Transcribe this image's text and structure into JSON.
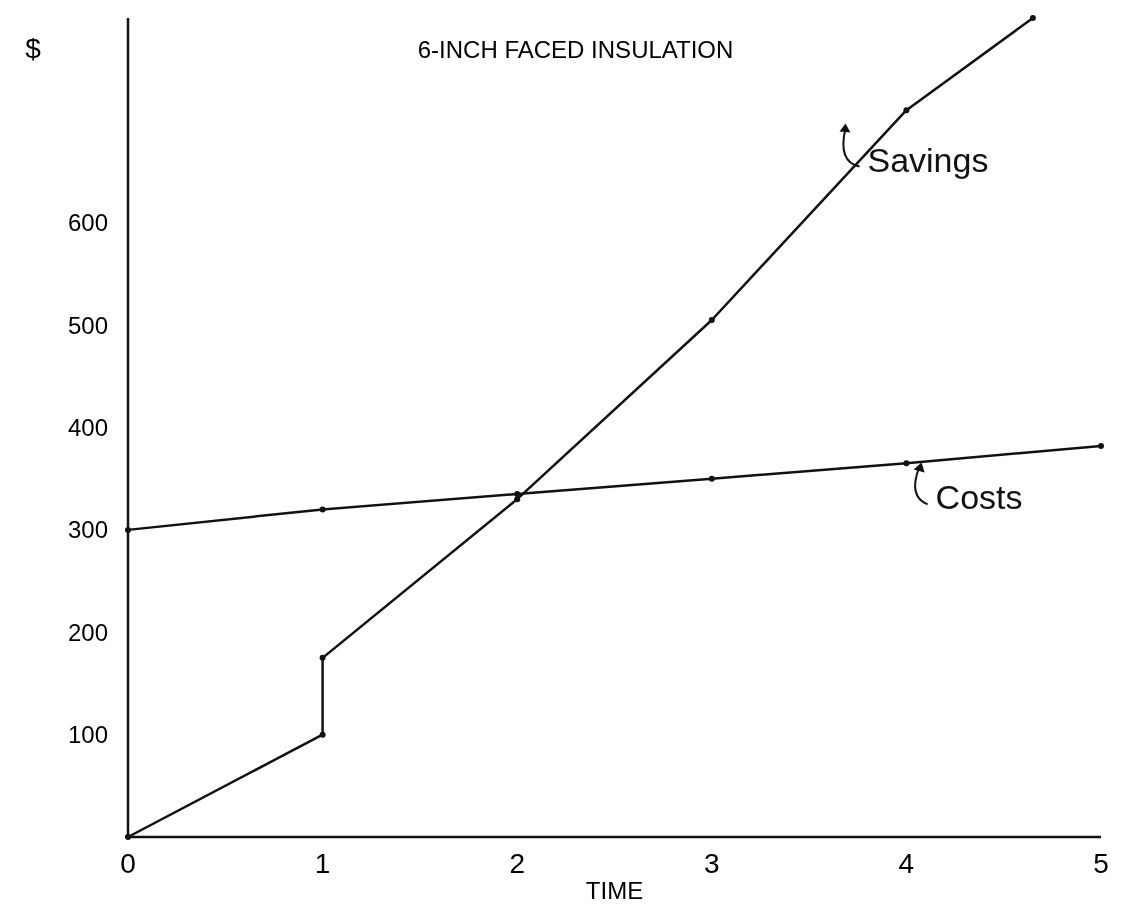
{
  "chart_data": {
    "type": "line",
    "title": "6-INCH FACED INSULATION",
    "xlabel": "TIME",
    "ylabel": "$",
    "xlim": [
      0,
      5
    ],
    "xticks": [
      0,
      1,
      2,
      3,
      4,
      5
    ],
    "ylim": [
      0,
      800
    ],
    "yticks": [
      100,
      200,
      300,
      400,
      500,
      600
    ],
    "grid": false,
    "legend": "right",
    "marker": "circle",
    "line_style": "solid",
    "series": [
      {
        "name": "Savings",
        "color": "#111111",
        "x": [
          0,
          1,
          1,
          2,
          3,
          4,
          4.65
        ],
        "values": [
          0,
          100,
          175,
          330,
          505,
          710,
          800
        ]
      },
      {
        "name": "Costs",
        "color": "#111111",
        "x": [
          0,
          1,
          2,
          3,
          4,
          5
        ],
        "values": [
          300,
          320,
          335,
          350,
          365,
          382
        ]
      }
    ]
  }
}
